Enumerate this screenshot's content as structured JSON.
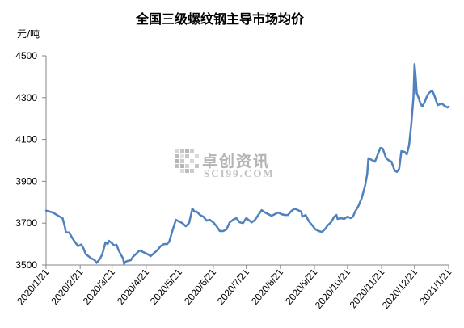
{
  "chart_data": {
    "type": "line",
    "title": "全国三级螺纹钢主导市场均价",
    "ylabel": "元/吨",
    "xlabel": "",
    "ylim": [
      3500,
      4500
    ],
    "xlim": [
      "2020/1/21",
      "2021/1/21"
    ],
    "y_ticks": [
      3500,
      3700,
      3900,
      4100,
      4300,
      4500
    ],
    "x_ticks": [
      "2020/1/21",
      "2020/2/21",
      "2020/3/21",
      "2020/4/21",
      "2020/5/21",
      "2020/6/21",
      "2020/7/21",
      "2020/8/21",
      "2020/9/21",
      "2020/10/21",
      "2020/11/21",
      "2020/12/21",
      "2021/1/21"
    ],
    "grid": false,
    "legend": "none",
    "series": [
      {
        "color": "#4F81BD",
        "dates": [
          "2020/1/21",
          "2020/1/27",
          "2020/2/1",
          "2020/2/5",
          "2020/2/7",
          "2020/2/8",
          "2020/2/11",
          "2020/2/14",
          "2020/2/16",
          "2020/2/19",
          "2020/2/22",
          "2020/2/24",
          "2020/2/26",
          "2020/2/29",
          "2020/3/2",
          "2020/3/5",
          "2020/3/7",
          "2020/3/10",
          "2020/3/12",
          "2020/3/15",
          "2020/3/17",
          "2020/3/18",
          "2020/3/21",
          "2020/3/23",
          "2020/3/25",
          "2020/3/27",
          "2020/3/29",
          "2020/3/31",
          "2020/4/1",
          "2020/4/2",
          "2020/4/4",
          "2020/4/7",
          "2020/4/9",
          "2020/4/12",
          "2020/4/14",
          "2020/4/16",
          "2020/4/18",
          "2020/4/20",
          "2020/4/23",
          "2020/4/25",
          "2020/4/28",
          "2020/5/1",
          "2020/5/4",
          "2020/5/7",
          "2020/5/10",
          "2020/5/12",
          "2020/5/15",
          "2020/5/18",
          "2020/5/21",
          "2020/5/24",
          "2020/5/27",
          "2020/5/30",
          "2020/6/2",
          "2020/6/4",
          "2020/6/6",
          "2020/6/9",
          "2020/6/12",
          "2020/6/15",
          "2020/6/18",
          "2020/6/21",
          "2020/6/24",
          "2020/6/27",
          "2020/6/30",
          "2020/7/3",
          "2020/7/6",
          "2020/7/9",
          "2020/7/12",
          "2020/7/15",
          "2020/7/18",
          "2020/7/21",
          "2020/7/23",
          "2020/7/26",
          "2020/7/29",
          "2020/8/1",
          "2020/8/4",
          "2020/8/7",
          "2020/8/10",
          "2020/8/13",
          "2020/8/16",
          "2020/8/19",
          "2020/8/22",
          "2020/8/25",
          "2020/8/28",
          "2020/8/31",
          "2020/9/3",
          "2020/9/6",
          "2020/9/9",
          "2020/9/10",
          "2020/9/13",
          "2020/9/16",
          "2020/9/19",
          "2020/9/22",
          "2020/9/25",
          "2020/9/28",
          "2020/10/1",
          "2020/10/3",
          "2020/10/6",
          "2020/10/9",
          "2020/10/11",
          "2020/10/12",
          "2020/10/15",
          "2020/10/18",
          "2020/10/21",
          "2020/10/24",
          "2020/10/26",
          "2020/10/28",
          "2020/10/31",
          "2020/11/3",
          "2020/11/6",
          "2020/11/8",
          "2020/11/9",
          "2020/11/12",
          "2020/11/15",
          "2020/11/17",
          "2020/11/20",
          "2020/11/22",
          "2020/11/25",
          "2020/11/27",
          "2020/11/30",
          "2020/12/3",
          "2020/12/5",
          "2020/12/7",
          "2020/12/9",
          "2020/12/12",
          "2020/12/14",
          "2020/12/16",
          "2020/12/18",
          "2020/12/20",
          "2020/12/21",
          "2020/12/22",
          "2020/12/23",
          "2020/12/25",
          "2020/12/26",
          "2020/12/28",
          "2020/12/30",
          "2021/1/1",
          "2021/1/3",
          "2021/1/6",
          "2021/1/7",
          "2021/1/8",
          "2021/1/11",
          "2021/1/13",
          "2021/1/15",
          "2021/1/17",
          "2021/1/20",
          "2021/1/21"
        ],
        "values": [
          3760,
          3751,
          3735,
          3724,
          3685,
          3658,
          3655,
          3627,
          3612,
          3590,
          3598,
          3580,
          3552,
          3540,
          3532,
          3524,
          3510,
          3530,
          3550,
          3608,
          3600,
          3616,
          3604,
          3593,
          3597,
          3570,
          3550,
          3532,
          3505,
          3515,
          3519,
          3523,
          3539,
          3554,
          3565,
          3570,
          3562,
          3558,
          3550,
          3542,
          3556,
          3570,
          3589,
          3600,
          3600,
          3612,
          3666,
          3716,
          3708,
          3700,
          3685,
          3700,
          3770,
          3755,
          3755,
          3739,
          3731,
          3712,
          3716,
          3704,
          3685,
          3662,
          3662,
          3670,
          3704,
          3716,
          3724,
          3704,
          3700,
          3724,
          3716,
          3704,
          3716,
          3739,
          3762,
          3751,
          3743,
          3735,
          3743,
          3751,
          3743,
          3739,
          3739,
          3758,
          3770,
          3762,
          3755,
          3731,
          3739,
          3708,
          3689,
          3670,
          3662,
          3658,
          3674,
          3689,
          3704,
          3731,
          3739,
          3720,
          3724,
          3720,
          3731,
          3724,
          3731,
          3755,
          3782,
          3820,
          3878,
          3936,
          4010,
          4002,
          3994,
          4021,
          4060,
          4056,
          4013,
          4002,
          3994,
          3950,
          3945,
          3960,
          4044,
          4040,
          4029,
          4071,
          4168,
          4303,
          4460,
          4400,
          4322,
          4295,
          4276,
          4257,
          4276,
          4303,
          4322,
          4334,
          4322,
          4311,
          4264,
          4268,
          4272,
          4261,
          4253,
          4257
        ]
      }
    ]
  },
  "watermark": {
    "name_cn": "卓创资讯",
    "name_en": "SCI99.COM"
  }
}
